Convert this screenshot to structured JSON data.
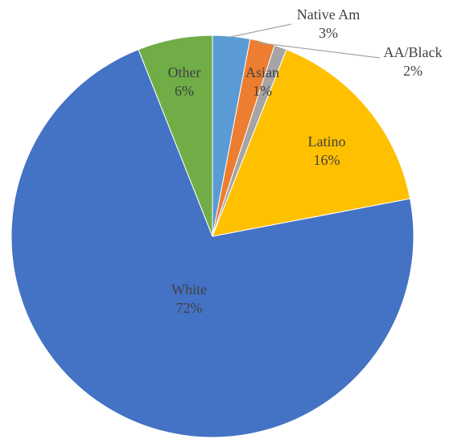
{
  "chart_data": {
    "type": "pie",
    "categories": [
      "Native Am",
      "AA/Black",
      "Asian",
      "Latino",
      "White",
      "Other"
    ],
    "values": [
      3,
      2,
      1,
      16,
      72,
      6
    ],
    "value_labels": [
      "3%",
      "2%",
      "1%",
      "16%",
      "72%",
      "6%"
    ],
    "colors": [
      "#5b9bd5",
      "#ed7d31",
      "#a5a5a5",
      "#ffc000",
      "#4472c4",
      "#70ad47"
    ]
  }
}
